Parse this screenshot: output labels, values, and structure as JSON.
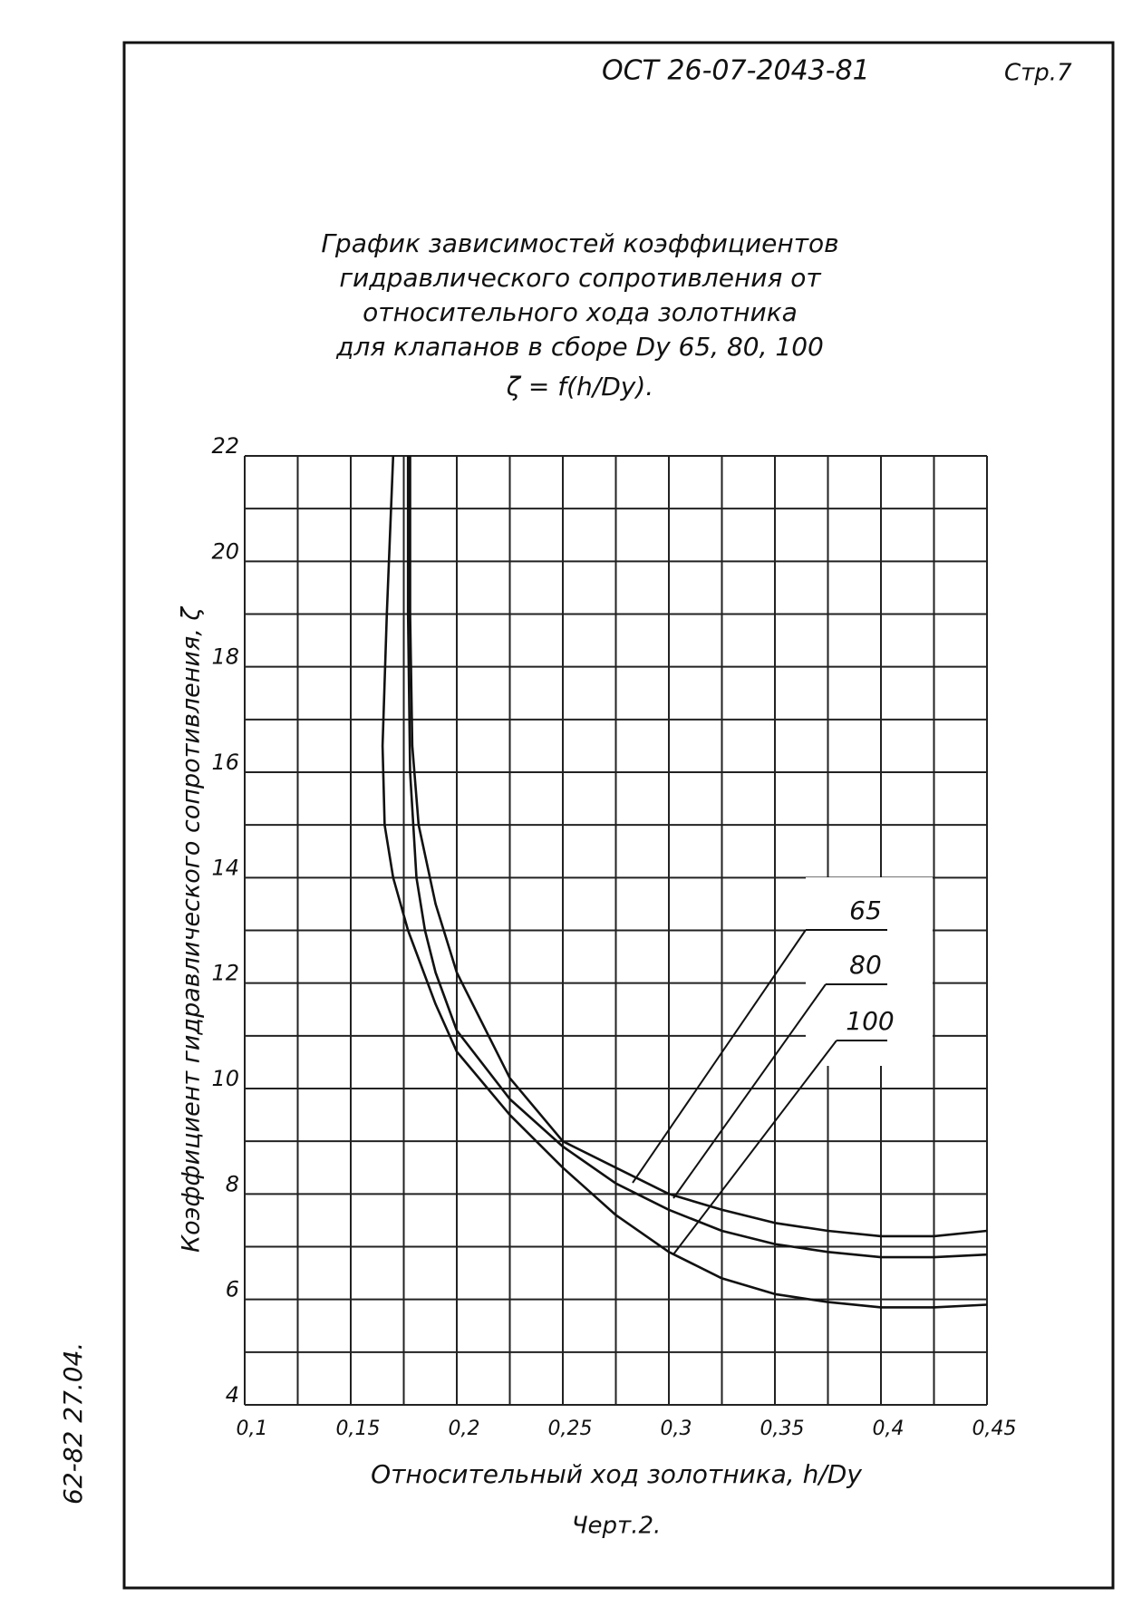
{
  "header": {
    "doc_number": "ОСТ 26-07-2043-81",
    "page": "Стр.7"
  },
  "margin_note": "62-82 27.04.",
  "caption": "Черт.2.",
  "chart_data": {
    "type": "line",
    "title": [
      "График зависимостей коэффициентов",
      "гидравлического сопротивления от",
      "относительного хода золотника",
      "для клапанов в сборе Dу 65, 80, 100"
    ],
    "subtitle": "ζ = f(h/Dу).",
    "x_label": "Относительный ход золотника, h/Dу",
    "y_label": "Коэффициент гидравлического сопротивления, ζ",
    "xlim": [
      0.1,
      0.45
    ],
    "ylim": [
      4,
      22
    ],
    "xticks": [
      {
        "value": 0.1,
        "label": "0,1"
      },
      {
        "value": 0.15,
        "label": "0,15"
      },
      {
        "value": 0.2,
        "label": "0,2"
      },
      {
        "value": 0.25,
        "label": "0,25"
      },
      {
        "value": 0.3,
        "label": "0,3"
      },
      {
        "value": 0.35,
        "label": "0,35"
      },
      {
        "value": 0.4,
        "label": "0,4"
      },
      {
        "value": 0.45,
        "label": "0,45"
      }
    ],
    "yticks": [
      4,
      6,
      8,
      10,
      12,
      14,
      16,
      18,
      20,
      22
    ],
    "xgrid": [
      0.1,
      0.125,
      0.15,
      0.175,
      0.2,
      0.225,
      0.25,
      0.275,
      0.3,
      0.325,
      0.35,
      0.375,
      0.4,
      0.425,
      0.45
    ],
    "ygrid": [
      4,
      5,
      6,
      7,
      8,
      9,
      10,
      11,
      12,
      13,
      14,
      15,
      16,
      17,
      18,
      19,
      20,
      21,
      22
    ],
    "grid": true,
    "series": [
      {
        "name": "65",
        "color": "#111111",
        "x": [
          0.178,
          0.178,
          0.179,
          0.182,
          0.19,
          0.2,
          0.225,
          0.25,
          0.275,
          0.3,
          0.325,
          0.35,
          0.375,
          0.4,
          0.425,
          0.45
        ],
        "values": [
          22,
          19,
          16.5,
          15,
          13.5,
          12.2,
          10.2,
          9.0,
          8.5,
          8.0,
          7.7,
          7.45,
          7.3,
          7.2,
          7.2,
          7.3
        ]
      },
      {
        "name": "80",
        "color": "#111111",
        "x": [
          0.177,
          0.177,
          0.178,
          0.181,
          0.185,
          0.19,
          0.2,
          0.225,
          0.25,
          0.275,
          0.3,
          0.325,
          0.35,
          0.375,
          0.4,
          0.425,
          0.45
        ],
        "values": [
          22,
          19,
          16,
          14,
          13,
          12.2,
          11.1,
          9.8,
          8.9,
          8.2,
          7.7,
          7.3,
          7.05,
          6.9,
          6.8,
          6.8,
          6.85
        ]
      },
      {
        "name": "100",
        "color": "#111111",
        "x": [
          0.17,
          0.167,
          0.165,
          0.166,
          0.17,
          0.177,
          0.19,
          0.2,
          0.225,
          0.25,
          0.275,
          0.3,
          0.325,
          0.35,
          0.375,
          0.4,
          0.425,
          0.45
        ],
        "values": [
          22,
          19,
          16.5,
          15,
          14,
          13,
          11.6,
          10.7,
          9.5,
          8.5,
          7.6,
          6.9,
          6.4,
          6.1,
          5.95,
          5.85,
          5.85,
          5.9
        ]
      }
    ]
  }
}
